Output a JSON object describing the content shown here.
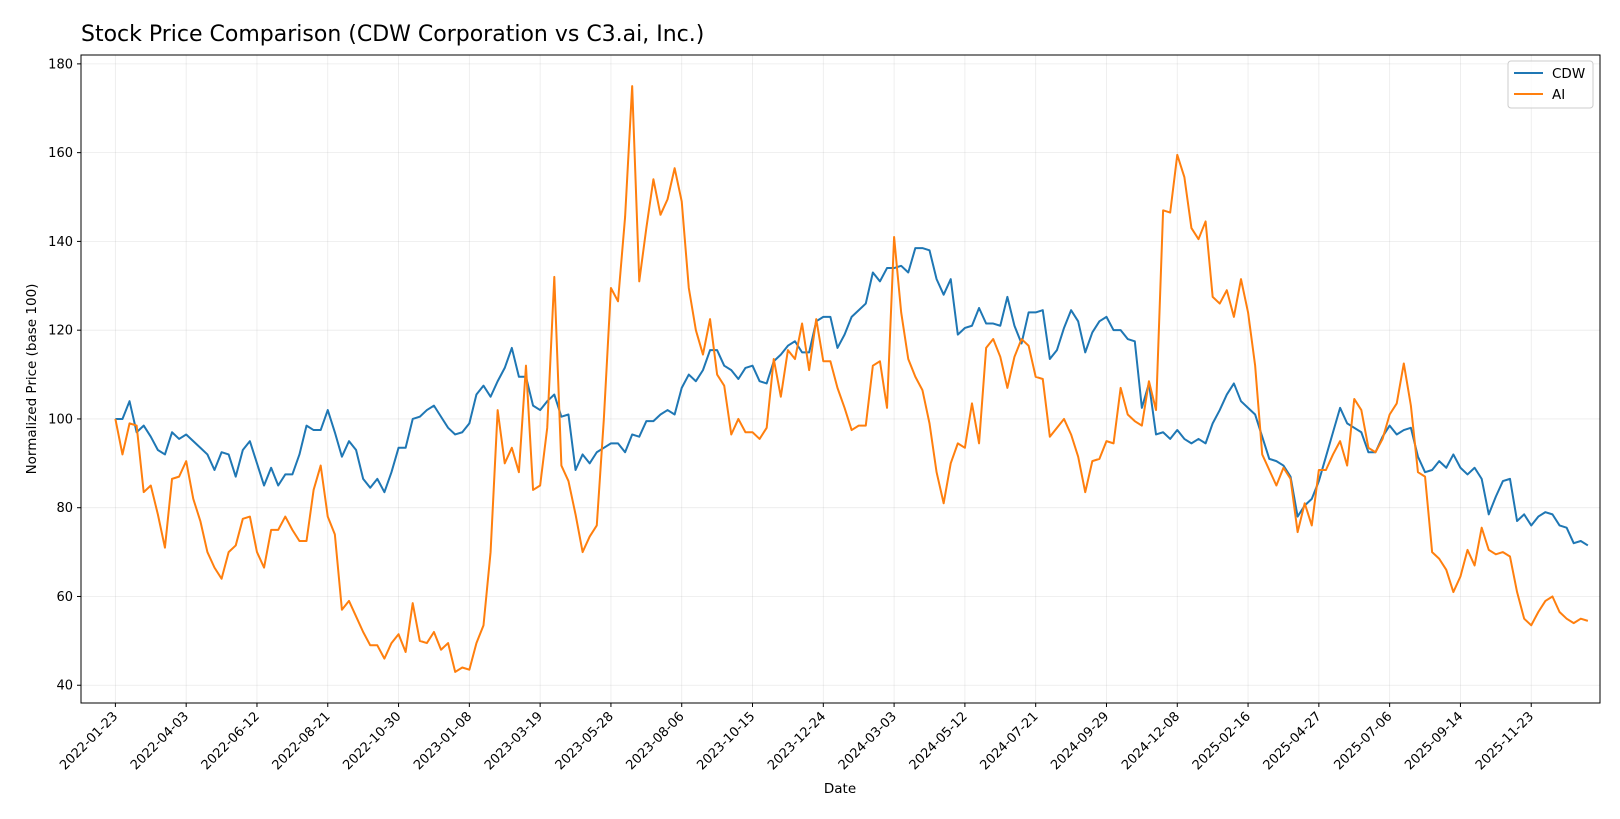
{
  "chart_data": {
    "type": "line",
    "title": "Stock Price Comparison (CDW Corporation vs C3.ai, Inc.)",
    "xlabel": "Date",
    "ylabel": "Normalized Price (base 100)",
    "x_range": [
      "2021-12-20",
      "2026-01-30"
    ],
    "ylim": [
      36,
      182
    ],
    "yticks": [
      40,
      60,
      80,
      100,
      120,
      140,
      160,
      180
    ],
    "xticks": [
      "2022-01-23",
      "2022-04-03",
      "2022-06-12",
      "2022-08-21",
      "2022-10-30",
      "2023-01-08",
      "2023-03-19",
      "2023-05-28",
      "2023-08-06",
      "2023-10-15",
      "2023-12-24",
      "2024-03-03",
      "2024-05-12",
      "2024-07-21",
      "2024-09-29",
      "2024-12-08",
      "2025-02-16",
      "2025-04-27",
      "2025-07-06",
      "2025-09-14",
      "2025-11-23"
    ],
    "grid": true,
    "legend_position": "top-right",
    "start_date": "2022-01-23",
    "step_days": 7,
    "series": [
      {
        "name": "CDW",
        "color": "#1f77b4",
        "values": [
          100,
          100,
          104,
          97,
          98.5,
          96,
          93,
          92,
          97,
          95.5,
          96.5,
          95,
          93.5,
          92,
          88.5,
          92.5,
          92,
          87,
          93,
          95,
          90,
          85,
          89,
          85,
          87.5,
          87.5,
          92,
          98.5,
          97.5,
          97.5,
          102,
          97,
          91.5,
          95,
          93,
          86.5,
          84.5,
          86.5,
          83.5,
          88,
          93.5,
          93.5,
          100,
          100.5,
          102,
          103,
          100.5,
          98,
          96.5,
          97,
          99,
          105.5,
          107.5,
          105,
          108.5,
          111.5,
          116,
          109.5,
          109.5,
          103,
          102,
          104,
          105.5,
          100.5,
          101,
          88.5,
          92,
          90,
          92.5,
          93.5,
          94.5,
          94.5,
          92.5,
          96.5,
          96,
          99.5,
          99.5,
          101,
          102,
          101,
          107,
          110,
          108.5,
          111,
          115.5,
          115.5,
          112,
          111,
          109,
          111.5,
          112,
          108.5,
          108,
          113,
          114.5,
          116.5,
          117.5,
          115,
          115,
          122,
          123,
          123,
          116,
          119,
          123,
          124.5,
          126,
          133,
          131,
          134,
          134,
          134.5,
          133,
          138.5,
          138.5,
          138,
          131.5,
          128,
          131.5,
          119,
          120.5,
          121,
          125,
          121.5,
          121.5,
          121,
          127.5,
          121,
          117,
          124,
          124,
          124.5,
          113.5,
          115.5,
          120.5,
          124.5,
          122,
          115,
          119.5,
          122,
          123,
          120,
          120,
          118,
          117.5,
          102.5,
          108,
          96.5,
          97,
          95.5,
          97.5,
          95.5,
          94.5,
          95.5,
          94.5,
          99,
          102,
          105.5,
          108,
          104,
          102.5,
          101,
          96,
          91,
          90.5,
          89.5,
          87,
          78,
          80.5,
          82,
          86,
          91.5,
          97,
          102.5,
          99,
          98,
          97,
          92.5,
          92.5,
          96,
          98.5,
          96.5,
          97.5,
          98,
          91.5,
          88,
          88.5,
          90.5,
          89,
          92,
          89,
          87.5,
          89,
          86.5,
          78.5,
          82.5,
          86,
          86.5,
          77,
          78.5,
          76,
          78,
          79,
          78.5,
          76,
          75.5,
          72,
          72.5,
          71.5
        ]
      },
      {
        "name": "AI",
        "color": "#ff7f0e",
        "values": [
          100,
          92,
          99,
          98.5,
          83.5,
          85,
          78.5,
          71,
          86.5,
          87,
          90.5,
          82,
          77,
          70,
          66.5,
          64,
          70,
          71.5,
          77.5,
          78,
          70,
          66.5,
          75,
          75,
          78,
          75,
          72.5,
          72.5,
          84,
          89.5,
          78,
          74,
          57,
          59,
          55.5,
          52,
          49,
          49,
          46,
          49.5,
          51.5,
          47.5,
          58.5,
          50,
          49.5,
          52,
          48,
          49.5,
          43,
          44,
          43.5,
          49.5,
          53.5,
          70,
          102,
          90,
          93.5,
          88,
          112,
          84,
          85,
          98,
          132,
          89.5,
          86,
          78.5,
          70,
          73.5,
          76,
          100,
          129.5,
          126.5,
          145.5,
          175,
          131,
          143,
          154,
          146,
          149.5,
          156.5,
          149,
          129.5,
          120,
          114.5,
          122.5,
          110,
          107.5,
          96.5,
          100,
          97,
          97,
          95.5,
          98,
          113.5,
          105,
          115.5,
          113.5,
          121.5,
          111,
          122.5,
          113,
          113,
          107,
          102.5,
          97.5,
          98.5,
          98.5,
          112,
          113,
          102.5,
          141,
          124,
          113.5,
          109.5,
          106.5,
          99,
          88,
          81,
          90,
          94.5,
          93.5,
          103.5,
          94.5,
          116,
          118,
          114,
          107,
          114,
          118,
          116.5,
          109.5,
          109,
          96,
          98,
          100,
          96.5,
          91.5,
          83.5,
          90.5,
          91,
          95,
          94.5,
          107,
          101,
          99.5,
          98.5,
          108.5,
          102,
          147,
          146.5,
          159.5,
          154.5,
          143,
          140.5,
          144.5,
          127.5,
          126,
          129,
          123,
          131.5,
          124,
          112,
          92,
          88.5,
          85,
          89,
          86.5,
          74.5,
          81,
          76,
          88.5,
          88.5,
          92,
          95,
          89.5,
          104.5,
          102,
          93.5,
          92.5,
          95.5,
          101,
          103.5,
          112.5,
          103,
          88,
          87,
          70,
          68.5,
          66,
          61,
          64.5,
          70.5,
          67,
          75.5,
          70.5,
          69.5,
          70,
          69,
          61,
          55,
          53.5,
          56.5,
          59,
          60,
          56.5,
          55,
          54,
          55,
          54.5
        ]
      }
    ]
  }
}
